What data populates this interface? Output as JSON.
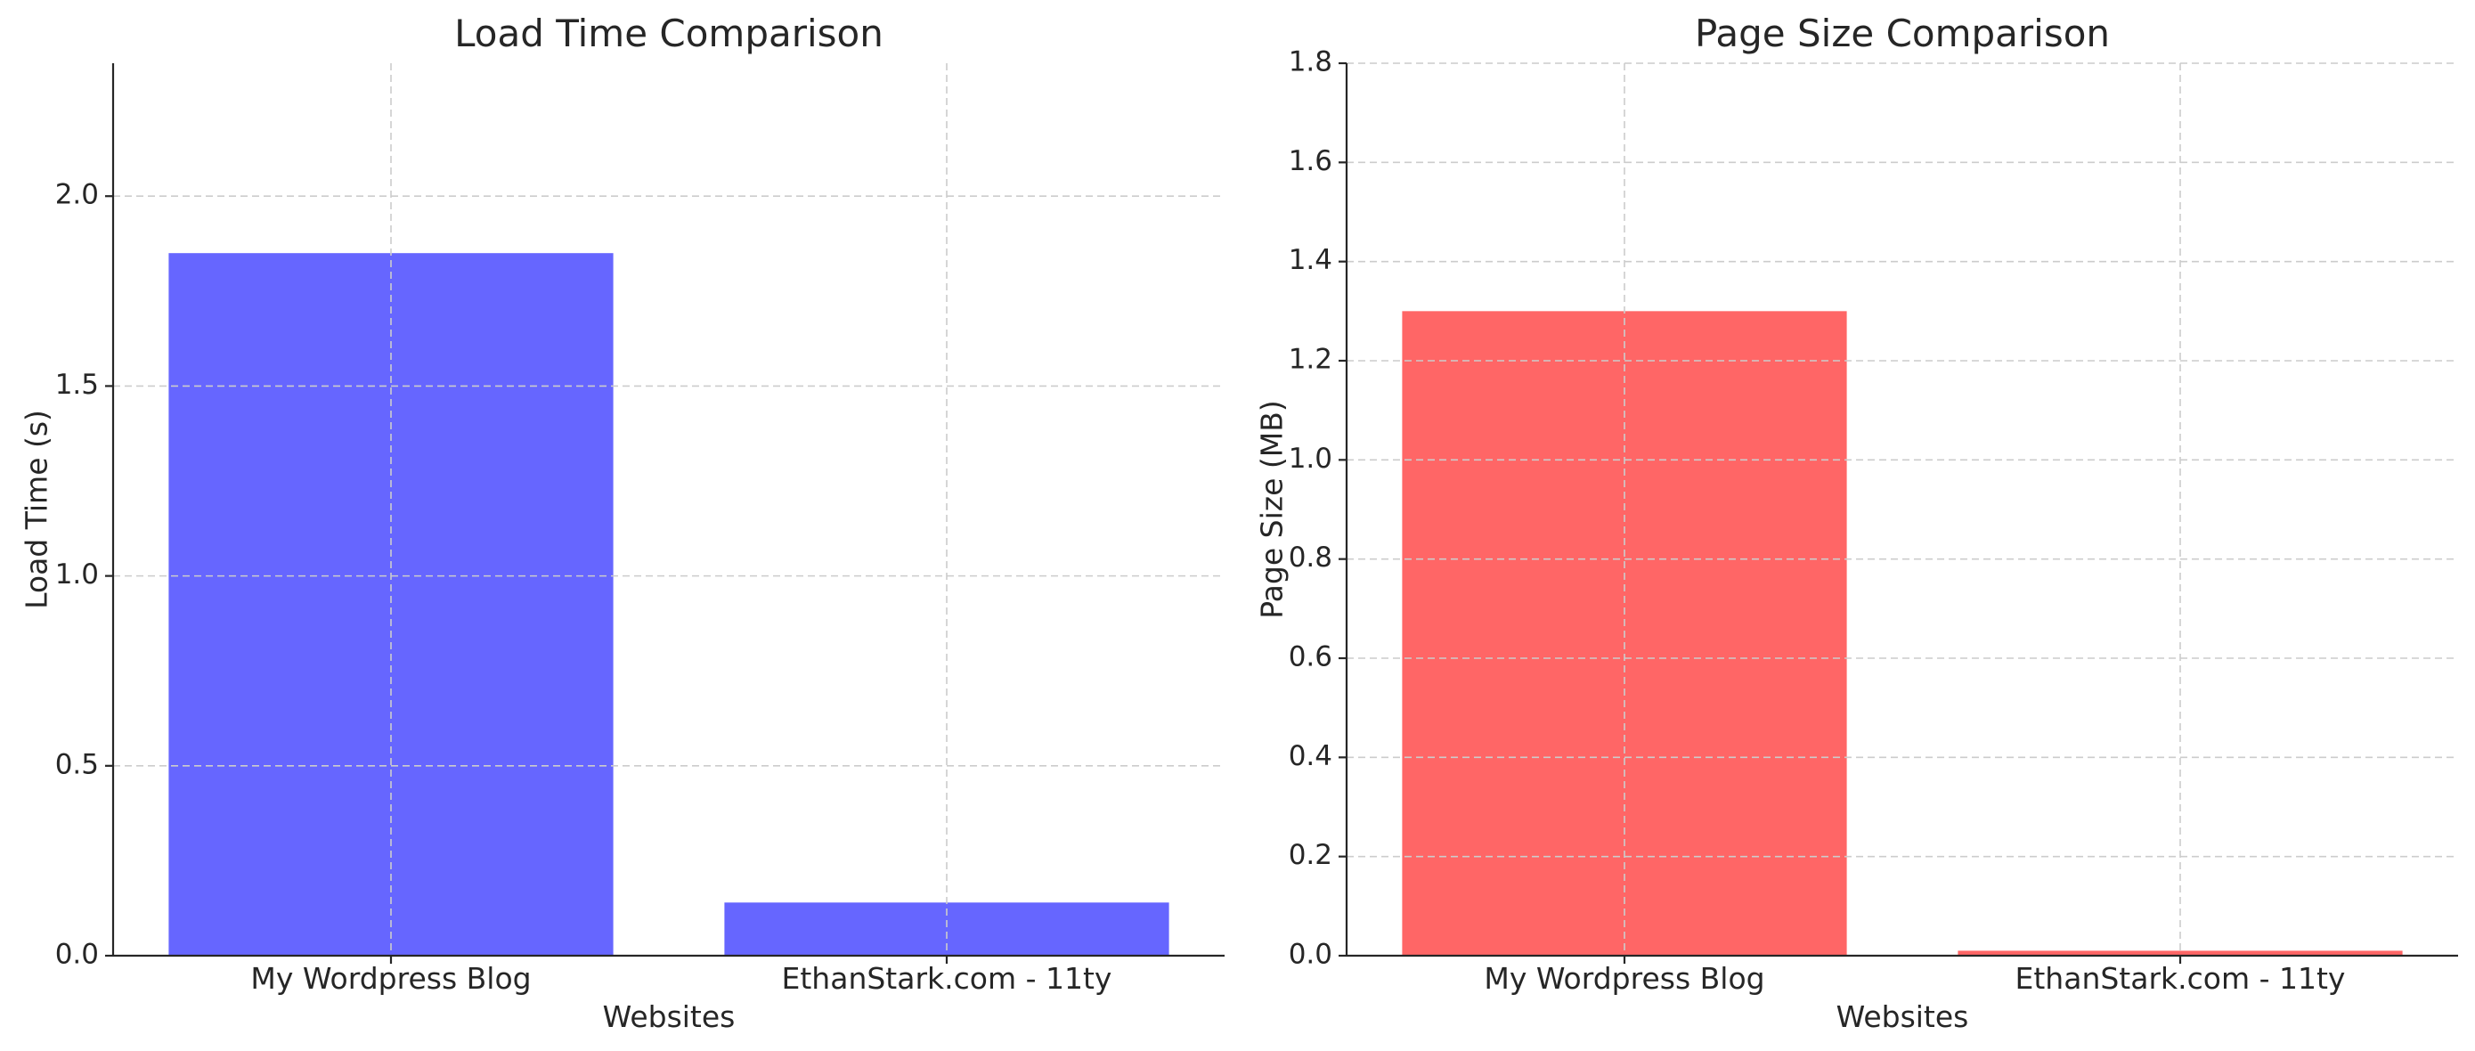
{
  "chart_data": [
    {
      "type": "bar",
      "title": "Load Time Comparison",
      "xlabel": "Websites",
      "ylabel": "Load Time (s)",
      "categories": [
        "My Wordpress Blog",
        "EthanStark.com - 11ty"
      ],
      "values": [
        1.85,
        0.14
      ],
      "ylim": [
        0,
        2.35
      ],
      "yticks": [
        0.0,
        0.5,
        1.0,
        1.5,
        2.0
      ],
      "ytick_labels": [
        "0.0",
        "0.5",
        "1.0",
        "1.5",
        "2.0"
      ],
      "color": "#6666ff",
      "grid": true
    },
    {
      "type": "bar",
      "title": "Page Size Comparison",
      "xlabel": "Websites",
      "ylabel": "Page Size (MB)",
      "categories": [
        "My Wordpress Blog",
        "EthanStark.com - 11ty"
      ],
      "values": [
        1.3,
        0.01
      ],
      "ylim": [
        0,
        1.8
      ],
      "yticks": [
        0.0,
        0.2,
        0.4,
        0.6,
        0.8,
        1.0,
        1.2,
        1.4,
        1.6,
        1.8
      ],
      "ytick_labels": [
        "0.0",
        "0.2",
        "0.4",
        "0.6",
        "0.8",
        "1.0",
        "1.2",
        "1.4",
        "1.6",
        "1.8"
      ],
      "color": "#ff6666",
      "grid": true
    }
  ]
}
